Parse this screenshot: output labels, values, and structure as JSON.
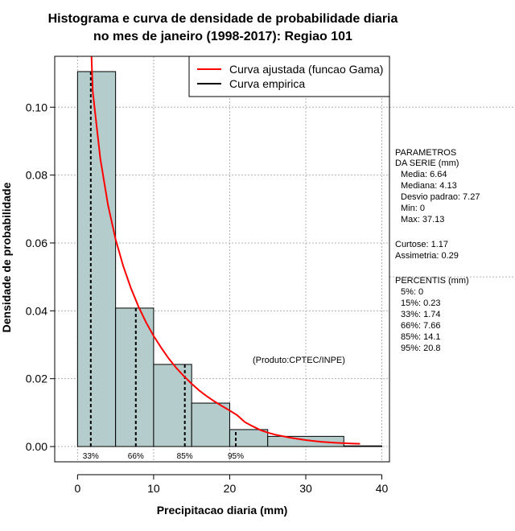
{
  "chart_data": {
    "type": "histogram",
    "title_line1": "Histograma e curva de densidade de probabilidade diaria",
    "title_line2": "no mes de janeiro (1998-2017): Regiao 101",
    "xlabel": "Precipitacao diaria (mm)",
    "ylabel": "Densidade de probabilidade",
    "xlim": [
      -3,
      41
    ],
    "ylim": [
      -0.0045,
      0.115
    ],
    "x_ticks": [
      0,
      10,
      20,
      30,
      40
    ],
    "x_tick_labels": [
      "0",
      "10",
      "20",
      "30",
      "40"
    ],
    "y_ticks": [
      0.0,
      0.02,
      0.04,
      0.06,
      0.08,
      0.1
    ],
    "y_tick_labels": [
      "0.00",
      "0.02",
      "0.04",
      "0.06",
      "0.08",
      "0.10"
    ],
    "grid": true,
    "bins": [
      {
        "from": 0,
        "to": 5,
        "density": 0.1105
      },
      {
        "from": 5,
        "to": 10,
        "density": 0.0408
      },
      {
        "from": 10,
        "to": 15,
        "density": 0.0242
      },
      {
        "from": 15,
        "to": 20,
        "density": 0.0128
      },
      {
        "from": 20,
        "to": 25,
        "density": 0.005
      },
      {
        "from": 25,
        "to": 35,
        "density": 0.003
      },
      {
        "from": 35,
        "to": 40,
        "density": 0.0002
      }
    ],
    "fitted_curve": {
      "name": "Curva ajustada (funcao Gama)",
      "color": "#ff0000",
      "x": [
        1.83,
        2,
        3,
        4,
        5,
        6,
        7,
        8,
        9,
        10,
        11,
        12,
        13,
        14,
        15,
        16,
        17,
        18,
        19,
        20,
        21,
        22,
        23,
        24,
        25,
        26,
        28,
        30,
        32,
        34,
        36,
        37.13
      ],
      "y": [
        0.115,
        0.1045,
        0.0848,
        0.0712,
        0.0611,
        0.0532,
        0.0468,
        0.0413,
        0.0366,
        0.0326,
        0.0291,
        0.0259,
        0.0231,
        0.0207,
        0.0185,
        0.0165,
        0.0148,
        0.0133,
        0.0119,
        0.0106,
        0.0092,
        0.0072,
        0.006,
        0.0049,
        0.0041,
        0.0035,
        0.0026,
        0.0019,
        0.0014,
        0.0011,
        0.0009,
        0.0008
      ]
    },
    "empirical_curve": {
      "name": "Curva empirica",
      "color": "#000000"
    },
    "percentile_lines": [
      {
        "label": "33%",
        "x": 1.74
      },
      {
        "label": "66%",
        "x": 7.66
      },
      {
        "label": "85%",
        "x": 14.1
      },
      {
        "label": "95%",
        "x": 20.8
      }
    ],
    "legend_position": "top-right",
    "annotation": "(Produto:CPTEC/INPE)",
    "colors": {
      "bar_fill": "#b4cccb",
      "grid": "#b0b0b0"
    }
  },
  "stats_panel": {
    "header1": "PARAMETROS",
    "header2": "DA SERIE (mm)",
    "media": "Media: 6.64",
    "mediana": "Mediana: 4.13",
    "desvio": "Desvio padrao: 7.27",
    "min": "Min: 0",
    "max": "Max: 37.13",
    "curtose": "Curtose: 1.17",
    "assimetria": "Assimetria: 0.29",
    "percentis_header": "PERCENTIS (mm)",
    "p5": "5%: 0",
    "p15": "15%: 0.23",
    "p33": "33%: 1.74",
    "p66": "66%: 7.66",
    "p85": "85%: 14.1",
    "p95": "95%: 20.8"
  }
}
